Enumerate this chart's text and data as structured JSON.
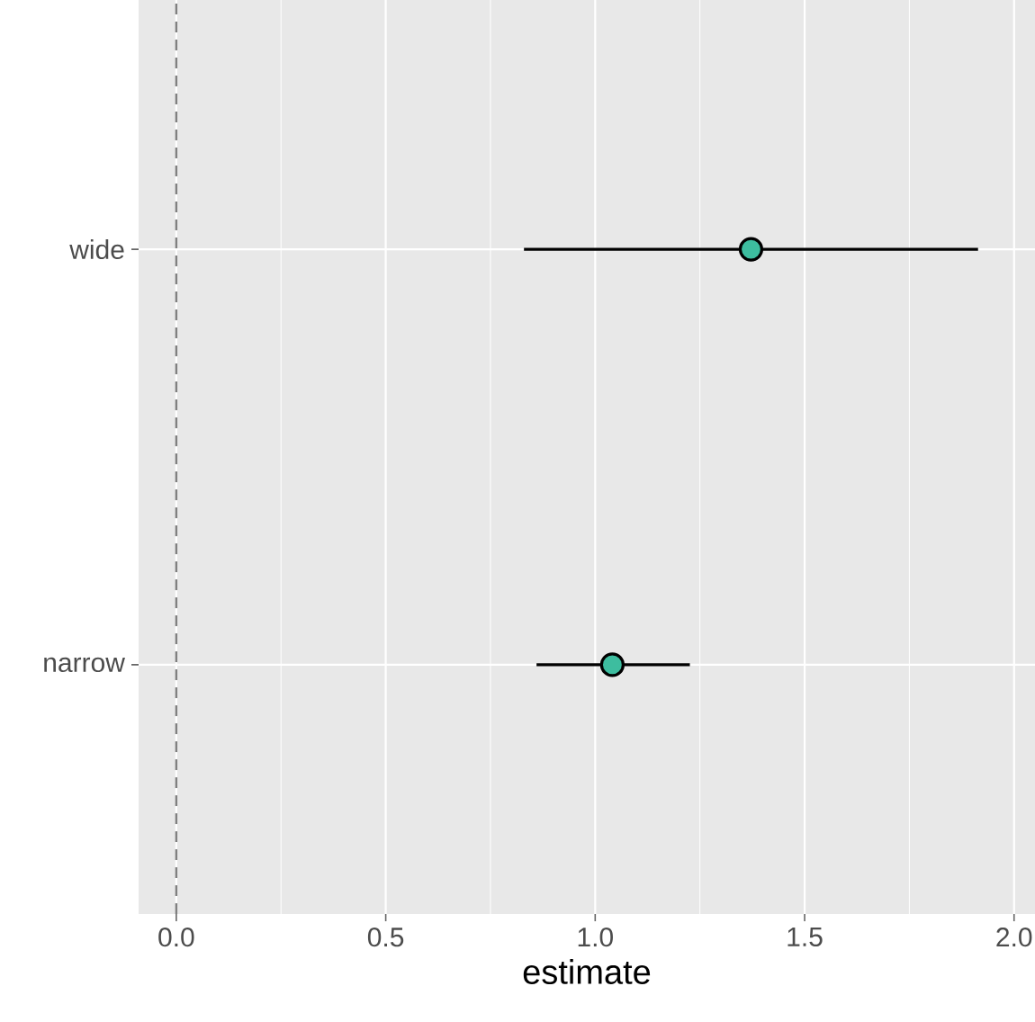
{
  "chart_data": {
    "type": "scatter",
    "orientation": "horizontal",
    "xlabel": "estimate",
    "categories": [
      "wide",
      "narrow"
    ],
    "values": [
      1.372,
      1.041
    ],
    "errors": [
      [
        0.83,
        1.914
      ],
      [
        0.86,
        1.226
      ]
    ],
    "color": "#3dbd9f",
    "grid": true,
    "xlim": [
      -0.09,
      2.05
    ],
    "xticks": [
      {
        "value": 0,
        "label": "0.0"
      },
      0.5,
      {
        "value": 1,
        "label": "1.0"
      },
      1.5,
      {
        "value": 2,
        "label": "2.0"
      }
    ],
    "ref_lines": [
      {
        "axis": "x",
        "value": 0,
        "color": "#808080",
        "line_style": "dashed"
      }
    ]
  }
}
